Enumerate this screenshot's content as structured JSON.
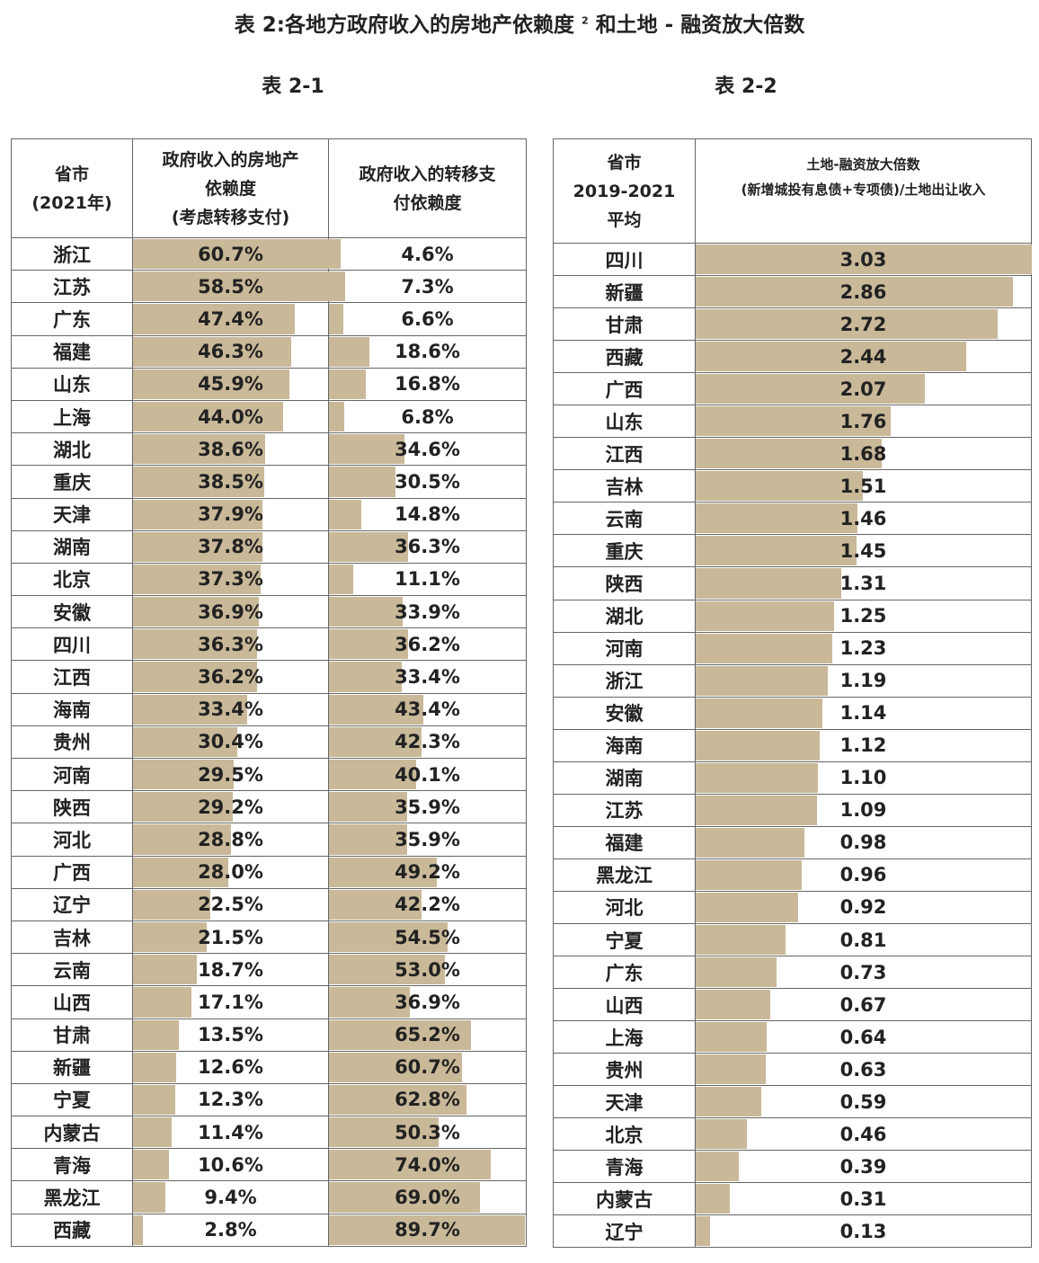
{
  "title": "表 2:各地方政府收入的房地产依赖度",
  "title_sup": "2",
  "title_suffix": "和土地 - 融资放大倍数",
  "table1": {
    "label": "表 2-1",
    "headers": {
      "c1a": "省市",
      "c1b": "(2021年)",
      "c2a": "政府收入的房地产",
      "c2b": "依赖度",
      "c2c": "(考虑转移支付)",
      "c3a": "政府收入的转移支",
      "c3b": "付依赖度"
    },
    "rows": [
      [
        "浙江",
        "60.7%",
        "4.6%"
      ],
      [
        "江苏",
        "58.5%",
        "7.3%"
      ],
      [
        "广东",
        "47.4%",
        "6.6%"
      ],
      [
        "福建",
        "46.3%",
        "18.6%"
      ],
      [
        "山东",
        "45.9%",
        "16.8%"
      ],
      [
        "上海",
        "44.0%",
        "6.8%"
      ],
      [
        "湖北",
        "38.6%",
        "34.6%"
      ],
      [
        "重庆",
        "38.5%",
        "30.5%"
      ],
      [
        "天津",
        "37.9%",
        "14.8%"
      ],
      [
        "湖南",
        "37.8%",
        "36.3%"
      ],
      [
        "北京",
        "37.3%",
        "11.1%"
      ],
      [
        "安徽",
        "36.9%",
        "33.9%"
      ],
      [
        "四川",
        "36.3%",
        "36.2%"
      ],
      [
        "江西",
        "36.2%",
        "33.4%"
      ],
      [
        "海南",
        "33.4%",
        "43.4%"
      ],
      [
        "贵州",
        "30.4%",
        "42.3%"
      ],
      [
        "河南",
        "29.5%",
        "40.1%"
      ],
      [
        "陕西",
        "29.2%",
        "35.9%"
      ],
      [
        "河北",
        "28.8%",
        "35.9%"
      ],
      [
        "广西",
        "28.0%",
        "49.2%"
      ],
      [
        "辽宁",
        "22.5%",
        "42.2%"
      ],
      [
        "吉林",
        "21.5%",
        "54.5%"
      ],
      [
        "云南",
        "18.7%",
        "53.0%"
      ],
      [
        "山西",
        "17.1%",
        "36.9%"
      ],
      [
        "甘肃",
        "13.5%",
        "65.2%"
      ],
      [
        "新疆",
        "12.6%",
        "60.7%"
      ],
      [
        "宁夏",
        "12.3%",
        "62.8%"
      ],
      [
        "内蒙古",
        "11.4%",
        "50.3%"
      ],
      [
        "青海",
        "10.6%",
        "74.0%"
      ],
      [
        "黑龙江",
        "9.4%",
        "69.0%"
      ],
      [
        "西藏",
        "2.8%",
        "89.7%"
      ]
    ]
  },
  "table2": {
    "label": "表 2-2",
    "headers": {
      "c1a": "省市",
      "c1b": "2019-2021",
      "c1c": "平均",
      "c2a": "土地-融资放大倍数",
      "c2b": "(新增城投有息债+专项债)/土地出让收入"
    },
    "rows": [
      [
        "四川",
        "3.03"
      ],
      [
        "新疆",
        "2.86"
      ],
      [
        "甘肃",
        "2.72"
      ],
      [
        "西藏",
        "2.44"
      ],
      [
        "广西",
        "2.07"
      ],
      [
        "山东",
        "1.76"
      ],
      [
        "江西",
        "1.68"
      ],
      [
        "吉林",
        "1.51"
      ],
      [
        "云南",
        "1.46"
      ],
      [
        "重庆",
        "1.45"
      ],
      [
        "陕西",
        "1.31"
      ],
      [
        "湖北",
        "1.25"
      ],
      [
        "河南",
        "1.23"
      ],
      [
        "浙江",
        "1.19"
      ],
      [
        "安徽",
        "1.14"
      ],
      [
        "海南",
        "1.12"
      ],
      [
        "湖南",
        "1.10"
      ],
      [
        "江苏",
        "1.09"
      ],
      [
        "福建",
        "0.98"
      ],
      [
        "黑龙江",
        "0.96"
      ],
      [
        "河北",
        "0.92"
      ],
      [
        "宁夏",
        "0.81"
      ],
      [
        "广东",
        "0.73"
      ],
      [
        "山西",
        "0.67"
      ],
      [
        "上海",
        "0.64"
      ],
      [
        "贵州",
        "0.63"
      ],
      [
        "天津",
        "0.59"
      ],
      [
        "北京",
        "0.46"
      ],
      [
        "青海",
        "0.39"
      ],
      [
        "内蒙古",
        "0.31"
      ],
      [
        "辽宁",
        "0.13"
      ]
    ]
  },
  "colors": {
    "bar": "#c9b999",
    "border": "#666666"
  }
}
